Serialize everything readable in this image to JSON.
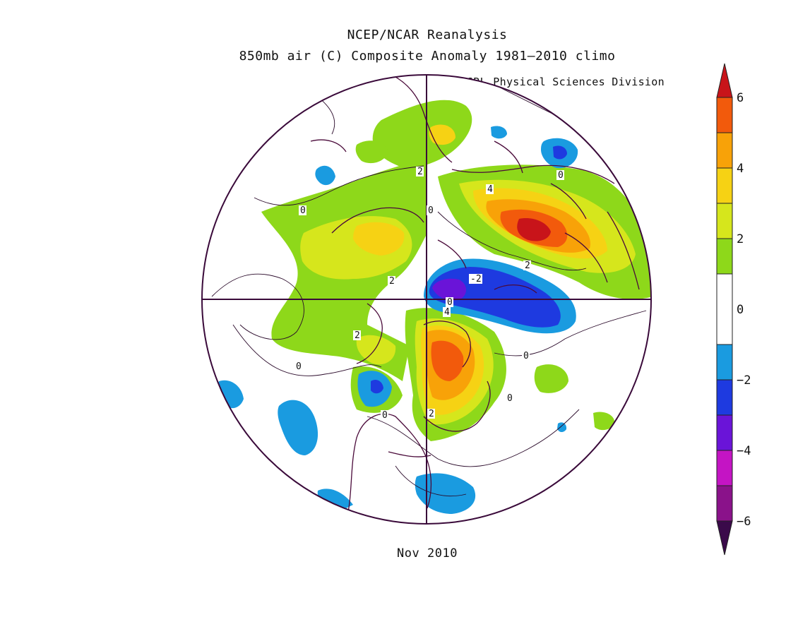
{
  "header": {
    "title": "NCEP/NCAR Reanalysis",
    "subtitle": "850mb air (C) Composite Anomaly 1981–2010 climo",
    "credit": "NOAA/ESRL Physical Sciences Division"
  },
  "footer": {
    "period": "Nov 2010"
  },
  "map": {
    "projection": "north-polar-stereographic",
    "contour_labels": [
      "2",
      "0",
      "0",
      "0",
      "2",
      "0",
      "4",
      "2",
      "-2",
      "4",
      "2",
      "0",
      "0",
      "0",
      "0",
      "2"
    ]
  },
  "colorbar": {
    "tick_labels": [
      "6",
      "4",
      "2",
      "0",
      "−2",
      "−4",
      "−6"
    ],
    "bins": [
      {
        "range": [
          -7,
          -6
        ],
        "color": "#3a0a4a"
      },
      {
        "range": [
          -6,
          -5
        ],
        "color": "#8a128a"
      },
      {
        "range": [
          -5,
          -4
        ],
        "color": "#c414c4"
      },
      {
        "range": [
          -4,
          -3
        ],
        "color": "#6a14d8"
      },
      {
        "range": [
          -3,
          -2
        ],
        "color": "#1e3ae0"
      },
      {
        "range": [
          -2,
          -1
        ],
        "color": "#1a9be0"
      },
      {
        "range": [
          -1,
          1
        ],
        "color": "#ffffff"
      },
      {
        "range": [
          1,
          2
        ],
        "color": "#8ed81a"
      },
      {
        "range": [
          2,
          3
        ],
        "color": "#d6e61c"
      },
      {
        "range": [
          3,
          4
        ],
        "color": "#f6d214"
      },
      {
        "range": [
          4,
          5
        ],
        "color": "#f8a208"
      },
      {
        "range": [
          5,
          6
        ],
        "color": "#f25a0c"
      },
      {
        "range": [
          6,
          7
        ],
        "color": "#c8141a"
      }
    ]
  }
}
